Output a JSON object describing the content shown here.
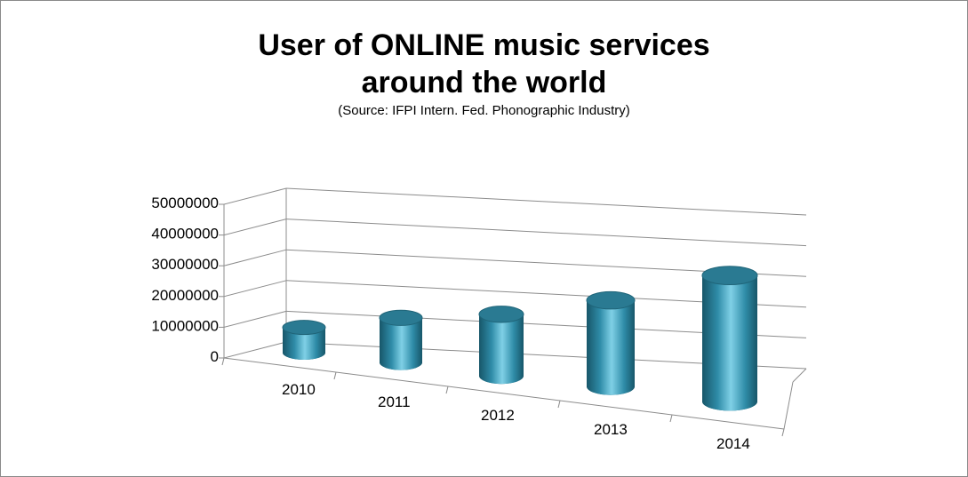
{
  "chart_data": {
    "type": "bar",
    "bar_shape": "cylinder-3d",
    "title_lines": [
      "User of ONLINE music services",
      "around the world"
    ],
    "subtitle": "(Source: IFPI Intern. Fed. Phonographic Industry)",
    "categories": [
      "2010",
      "2011",
      "2012",
      "2013",
      "2014"
    ],
    "series": [
      {
        "values": [
          8200000,
          14500000,
          20000000,
          28000000,
          41000000
        ]
      }
    ],
    "y_ticks": [
      "0",
      "10000000",
      "20000000",
      "30000000",
      "40000000",
      "50000000"
    ],
    "ylim": [
      0,
      50000000
    ],
    "grid": true,
    "legend": "none",
    "colors": {
      "bar": "#2f8ca8",
      "bar_highlight": "#7fd0e6",
      "bar_shadow": "#175669",
      "bar_top": "#2a7a92",
      "grid": "#8c8c8c",
      "frame": "#8a8a8a"
    }
  }
}
